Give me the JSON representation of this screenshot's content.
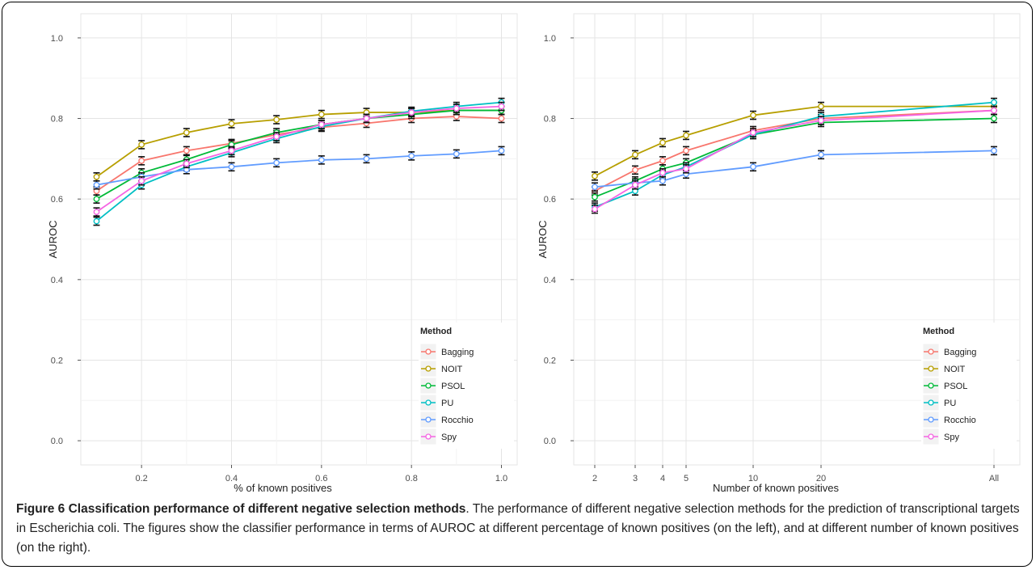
{
  "caption": {
    "label": "Figure 6",
    "title": "Classification performance of different negative selection methods",
    "text": ". The performance of different negative selection methods for the prediction of transcriptional targets in Escherichia coli. The figures show the classifier performance in terms of AUROC at different percentage of known positives (on the left), and at different number of known positives (on the right)."
  },
  "chart_data": [
    {
      "type": "line",
      "xlabel": "% of known positives",
      "ylabel": "AUROC",
      "x": [
        0.1,
        0.2,
        0.3,
        0.4,
        0.5,
        0.6,
        0.7,
        0.8,
        0.9,
        1.0
      ],
      "x_ticks": [
        0.2,
        0.4,
        0.6,
        0.8,
        1.0
      ],
      "x_tick_labels": [
        "0.2",
        "0.4",
        "0.6",
        "0.8",
        "1.0"
      ],
      "xlim": [
        0.065,
        1.035
      ],
      "ylim": [
        -0.06,
        1.06
      ],
      "y_ticks": [
        0.0,
        0.2,
        0.4,
        0.6,
        0.8,
        1.0
      ],
      "y_tick_labels": [
        "0.0",
        "0.2",
        "0.4",
        "0.6",
        "0.8",
        "1.0"
      ],
      "grid": true,
      "legend": {
        "title": "Method",
        "position": "bottom-right"
      },
      "series": [
        {
          "name": "Bagging",
          "color": "#f8766d",
          "values": [
            0.62,
            0.695,
            0.72,
            0.738,
            0.76,
            0.778,
            0.788,
            0.8,
            0.805,
            0.8
          ]
        },
        {
          "name": "NOIT",
          "color": "#b79f00",
          "values": [
            0.655,
            0.735,
            0.765,
            0.787,
            0.797,
            0.81,
            0.815,
            0.815,
            0.82,
            0.82
          ]
        },
        {
          "name": "PSOL",
          "color": "#00ba38",
          "values": [
            0.6,
            0.665,
            0.698,
            0.735,
            0.765,
            0.785,
            0.8,
            0.81,
            0.82,
            0.82
          ]
        },
        {
          "name": "PU",
          "color": "#00bfc4",
          "values": [
            0.545,
            0.635,
            0.68,
            0.715,
            0.75,
            0.78,
            0.8,
            0.818,
            0.83,
            0.84
          ]
        },
        {
          "name": "Rocchio",
          "color": "#619cff",
          "values": [
            0.635,
            0.655,
            0.673,
            0.68,
            0.69,
            0.697,
            0.7,
            0.707,
            0.712,
            0.72
          ]
        },
        {
          "name": "Spy",
          "color": "#f564e3",
          "values": [
            0.568,
            0.645,
            0.688,
            0.72,
            0.755,
            0.785,
            0.8,
            0.815,
            0.825,
            0.83
          ]
        }
      ]
    },
    {
      "type": "line",
      "xlabel": "Number of known positives",
      "ylabel": "AUROC",
      "categories": [
        "2",
        "3",
        "4",
        "5",
        "10",
        "20",
        "All"
      ],
      "ylim": [
        -0.06,
        1.06
      ],
      "y_ticks": [
        0.0,
        0.2,
        0.4,
        0.6,
        0.8,
        1.0
      ],
      "y_tick_labels": [
        "0.0",
        "0.2",
        "0.4",
        "0.6",
        "0.8",
        "1.0"
      ],
      "grid": true,
      "legend": {
        "title": "Method",
        "position": "bottom-right"
      },
      "series": [
        {
          "name": "Bagging",
          "color": "#f8766d",
          "values": [
            0.62,
            0.672,
            0.695,
            0.72,
            0.77,
            0.8,
            0.82
          ]
        },
        {
          "name": "NOIT",
          "color": "#b79f00",
          "values": [
            0.657,
            0.71,
            0.74,
            0.758,
            0.808,
            0.83,
            0.83
          ]
        },
        {
          "name": "PSOL",
          "color": "#00ba38",
          "values": [
            0.605,
            0.645,
            0.675,
            0.69,
            0.76,
            0.79,
            0.8
          ]
        },
        {
          "name": "PU",
          "color": "#00bfc4",
          "values": [
            0.58,
            0.62,
            0.66,
            0.68,
            0.76,
            0.805,
            0.84
          ]
        },
        {
          "name": "Rocchio",
          "color": "#619cff",
          "values": [
            0.63,
            0.64,
            0.645,
            0.662,
            0.68,
            0.71,
            0.72
          ]
        },
        {
          "name": "Spy",
          "color": "#f564e3",
          "values": [
            0.575,
            0.635,
            0.665,
            0.675,
            0.765,
            0.795,
            0.82
          ]
        }
      ]
    }
  ]
}
